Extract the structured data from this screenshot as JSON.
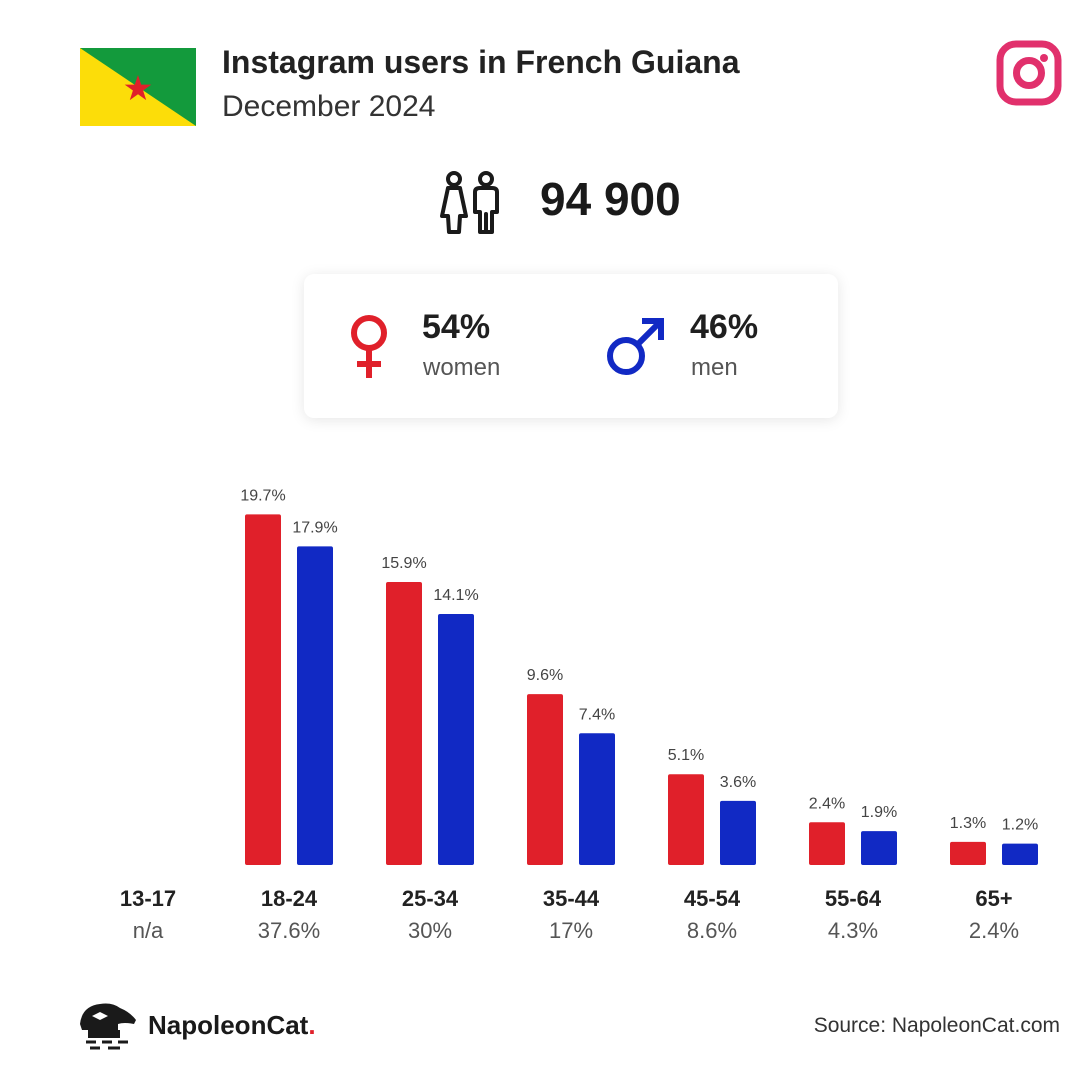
{
  "header": {
    "title": "Instagram users in French Guiana",
    "subtitle": "December 2024"
  },
  "total_users": "94 900",
  "gender": {
    "female_percent": "54%",
    "female_label": "women",
    "male_percent": "46%",
    "male_label": "men"
  },
  "colors": {
    "women": "#e0202a",
    "men": "#1129c4",
    "instagram": "#e1306c"
  },
  "footer": {
    "brand_name": "NapoleonCat",
    "brand_dot": ".",
    "source": "Source: NapoleonCat.com"
  },
  "chart_data": {
    "type": "bar",
    "categories": [
      "13-17",
      "18-24",
      "25-34",
      "35-44",
      "45-54",
      "55-64",
      "65+"
    ],
    "category_totals": [
      "n/a",
      "37.6%",
      "30%",
      "17%",
      "8.6%",
      "4.3%",
      "2.4%"
    ],
    "series": [
      {
        "values": [
          null,
          19.7,
          15.9,
          9.6,
          5.1,
          2.4,
          1.3
        ],
        "labels": [
          null,
          "19.7%",
          "15.9%",
          "9.6%",
          "5.1%",
          "2.4%",
          "1.3%"
        ]
      },
      {
        "values": [
          null,
          17.9,
          14.1,
          7.4,
          3.6,
          1.9,
          1.2
        ],
        "labels": [
          null,
          "17.9%",
          "14.1%",
          "7.4%",
          "3.6%",
          "1.9%",
          "1.2%"
        ]
      }
    ],
    "ylim": [
      0,
      20
    ],
    "grid": false
  }
}
